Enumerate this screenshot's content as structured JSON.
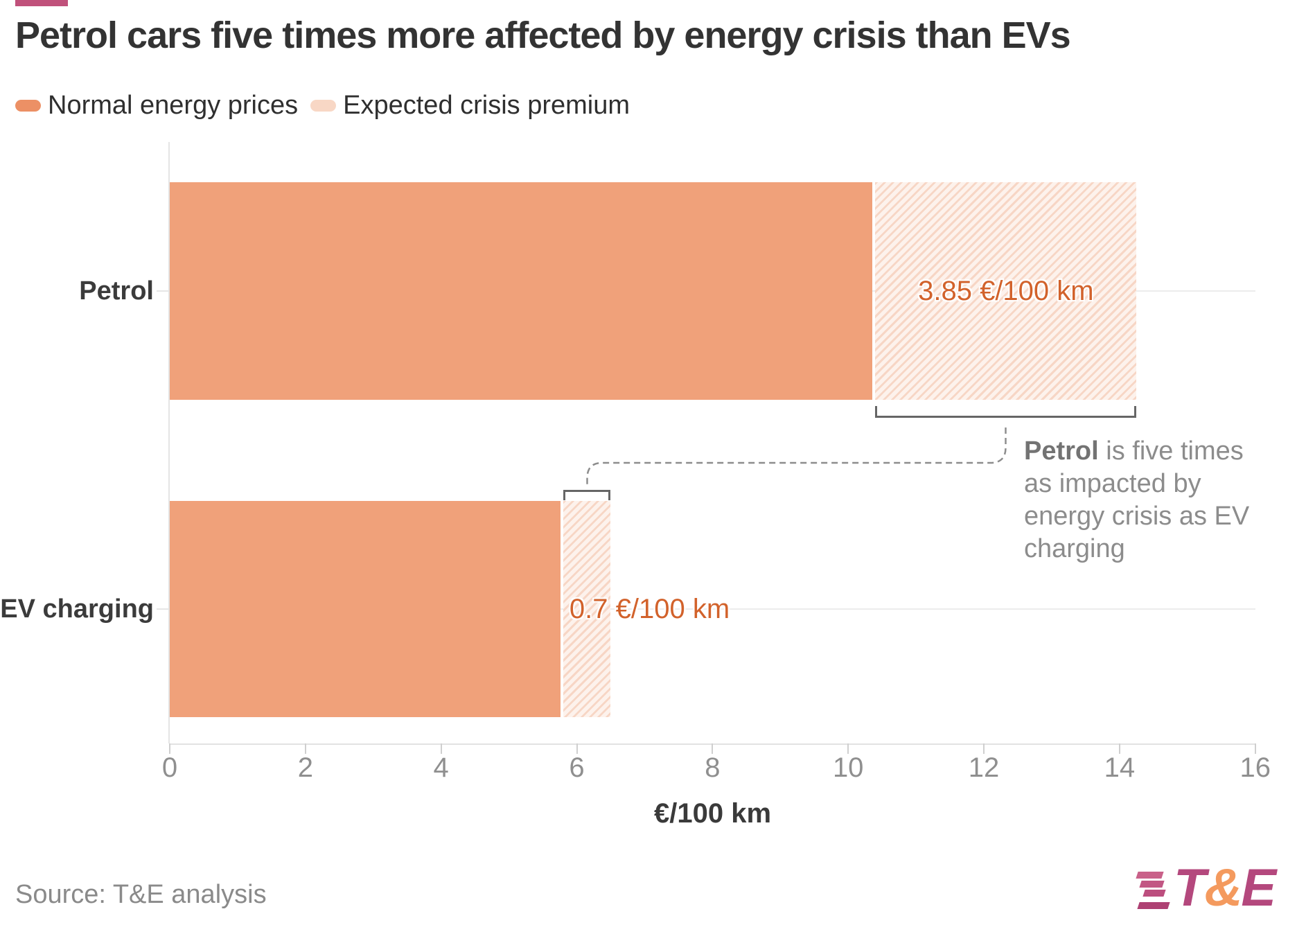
{
  "header": {
    "accent_color": "#C0517B",
    "title": "Petrol cars five times more affected by energy crisis than EVs"
  },
  "legend": {
    "items": [
      {
        "label": "Normal energy prices",
        "color": "#EC9065",
        "style": "solid"
      },
      {
        "label": "Expected crisis premium",
        "color": "#F8D7C5",
        "style": "hatched"
      }
    ]
  },
  "chart_data": {
    "type": "bar",
    "orientation": "horizontal",
    "title": "Petrol cars five times more affected by energy crisis than EVs",
    "categories": [
      "Petrol",
      "EV charging"
    ],
    "series": [
      {
        "name": "Normal energy prices",
        "values": [
          10.4,
          5.8
        ],
        "color": "#F0A17A",
        "style": "solid"
      },
      {
        "name": "Expected crisis premium",
        "values": [
          3.85,
          0.7
        ],
        "color": "#F8D7C5",
        "style": "hatched"
      }
    ],
    "totals": [
      14.25,
      6.5
    ],
    "premium_labels": [
      "3.85 €/100 km",
      "0.7 €/100 km"
    ],
    "xlabel": "€/100 km",
    "xlim": [
      0,
      16
    ],
    "xticks": [
      0,
      2,
      4,
      6,
      8,
      10,
      12,
      14,
      16
    ],
    "grid": "row-center-lines",
    "legend_position": "top-left",
    "colors": {
      "solid_bar": "#F0A17A",
      "hatch_stripe": "#F7D6C5",
      "hatch_background": "#FDF2EC",
      "premium_label_text": "#D2622B",
      "bracket": "#666666",
      "connector_dash": "#8D8D8D"
    }
  },
  "annotation": {
    "bold_word": "Petrol",
    "line1_rest": " is five times",
    "line2": "as impacted by",
    "line3": "energy crisis as EV",
    "line4": "charging"
  },
  "footer": {
    "source": "Source: T&E analysis",
    "logo_t": "T",
    "logo_amp": "&",
    "logo_e": "E",
    "logo_colors": {
      "letters": "#B4487D",
      "ampersand": "#F49A5E"
    }
  }
}
